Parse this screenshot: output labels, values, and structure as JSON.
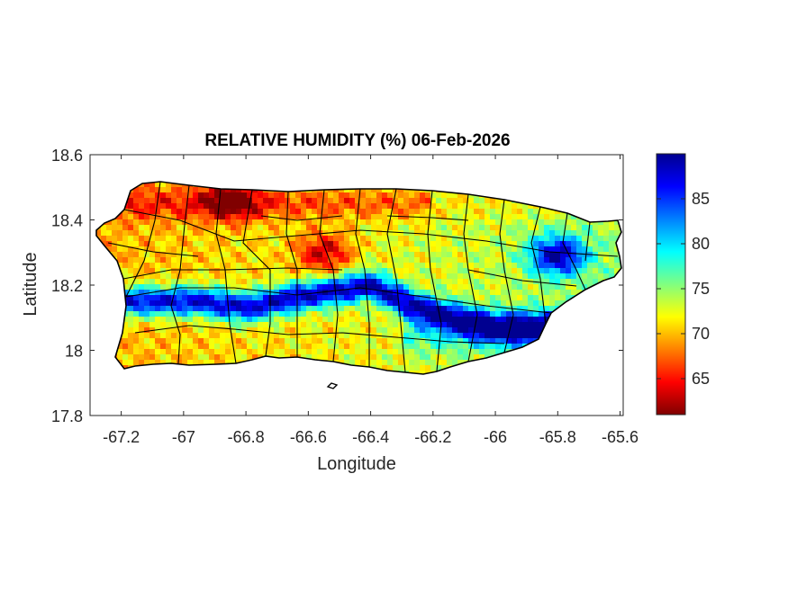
{
  "chart_data": {
    "type": "heatmap",
    "title": "RELATIVE HUMIDITY (%) 06-Feb-2026",
    "xlabel": "Longitude",
    "ylabel": "Latitude",
    "xlim": [
      -67.3,
      -65.59
    ],
    "ylim": [
      17.8,
      18.6
    ],
    "xticks": [
      -67.2,
      -67,
      -66.8,
      -66.6,
      -66.4,
      -66.2,
      -66,
      -65.8,
      -65.6
    ],
    "xtick_labels": [
      "-67.2",
      "-67",
      "-66.8",
      "-66.6",
      "-66.4",
      "-66.2",
      "-66",
      "-65.8",
      "-65.6"
    ],
    "yticks": [
      17.8,
      18,
      18.2,
      18.4,
      18.6
    ],
    "ytick_labels": [
      "17.8",
      "18",
      "18.2",
      "18.4",
      "18.6"
    ],
    "colorbar": {
      "range": [
        61,
        90
      ],
      "ticks": [
        65,
        70,
        75,
        80,
        85
      ],
      "tick_labels": [
        "65",
        "70",
        "75",
        "80",
        "85"
      ],
      "colormap": "jet",
      "stops": [
        "#800000",
        "#ff0000",
        "#ff8000",
        "#ffff00",
        "#80ff80",
        "#00ffff",
        "#0080ff",
        "#0000ff",
        "#000090"
      ]
    },
    "region": "Puerto Rico",
    "overlay": "municipality boundaries (black)",
    "grid": false,
    "features": [
      {
        "description": "moist band (85-90%) along Cordillera Central",
        "path_lon": [
          -66.95,
          -66.8,
          -66.6,
          -66.4,
          -66.25,
          -66.1,
          -66.0
        ],
        "path_lat": [
          18.15,
          18.13,
          18.17,
          18.2,
          18.13,
          18.09,
          18.07
        ],
        "value": 88
      },
      {
        "description": "moist core over El Yunque",
        "lon": -65.8,
        "lat": 18.29,
        "value": 90
      },
      {
        "description": "dry core north-west",
        "lon": -66.85,
        "lat": 18.46,
        "value": 62
      },
      {
        "description": "dry core north-central",
        "lon": -66.55,
        "lat": 18.3,
        "value": 63
      }
    ]
  }
}
